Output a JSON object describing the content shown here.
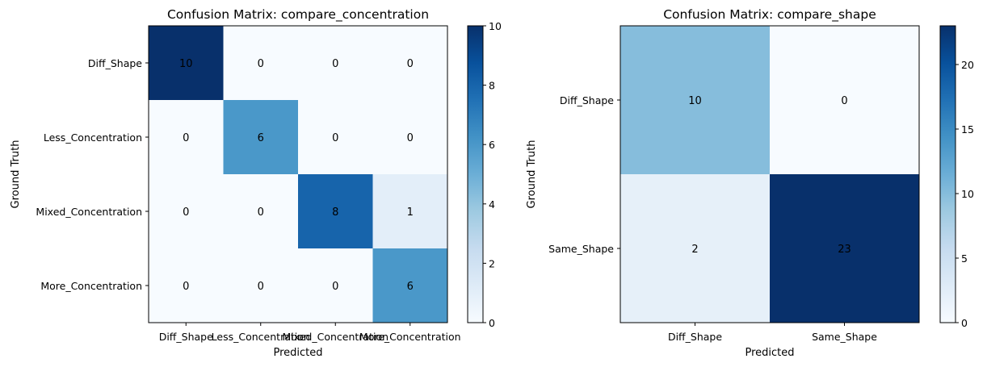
{
  "colormap": "Blues",
  "colors": {
    "low": "#f7fbff",
    "high": "#08306b",
    "text": "#000000",
    "axis": "#000000"
  },
  "chart_data": [
    {
      "type": "heatmap",
      "title": "Confusion Matrix: compare_concentration",
      "xlabel": "Predicted",
      "ylabel": "Ground Truth",
      "x_categories": [
        "Diff_Shape",
        "Less_Concentration",
        "Mixed_Concentration",
        "More_Concentration"
      ],
      "y_categories": [
        "Diff_Shape",
        "Less_Concentration",
        "Mixed_Concentration",
        "More_Concentration"
      ],
      "values": [
        [
          10,
          0,
          0,
          0
        ],
        [
          0,
          6,
          0,
          0
        ],
        [
          0,
          0,
          8,
          1
        ],
        [
          0,
          0,
          0,
          6
        ]
      ],
      "cell_labels": [
        [
          "10",
          "0",
          "0",
          "0"
        ],
        [
          "0",
          "6",
          "0",
          "0"
        ],
        [
          "0",
          "0",
          "8",
          "1"
        ],
        [
          "0",
          "0",
          "0",
          "6"
        ]
      ],
      "colorbar": {
        "min": 0,
        "max": 10,
        "ticks": [
          0,
          2,
          4,
          6,
          8,
          10
        ],
        "tick_labels": [
          "0",
          "2",
          "4",
          "6",
          "8",
          "10"
        ]
      }
    },
    {
      "type": "heatmap",
      "title": "Confusion Matrix: compare_shape",
      "xlabel": "Predicted",
      "ylabel": "Ground Truth",
      "x_categories": [
        "Diff_Shape",
        "Same_Shape"
      ],
      "y_categories": [
        "Diff_Shape",
        "Same_Shape"
      ],
      "values": [
        [
          10,
          0
        ],
        [
          2,
          23
        ]
      ],
      "cell_labels": [
        [
          "10",
          "0"
        ],
        [
          "2",
          "23"
        ]
      ],
      "colorbar": {
        "min": 0,
        "max": 23,
        "ticks": [
          0,
          5,
          10,
          15,
          20
        ],
        "tick_labels": [
          "0",
          "5",
          "10",
          "15",
          "20"
        ]
      }
    }
  ]
}
